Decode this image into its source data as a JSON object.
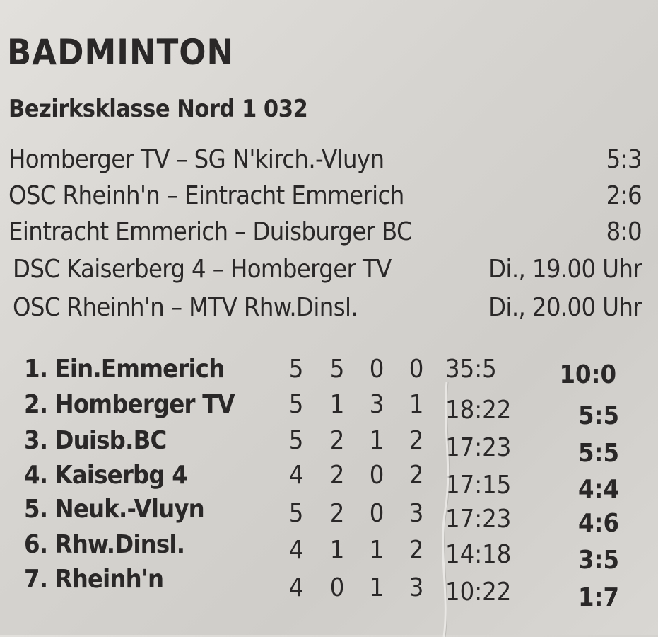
{
  "section": {
    "title": "BADMINTON"
  },
  "league": {
    "title": "Bezirksklasse Nord 1 032"
  },
  "matches": [
    {
      "teams": "Homberger TV – SG N'kirch.-Vluyn",
      "result": "5:3"
    },
    {
      "teams": "OSC Rheinh'n – Eintracht Emmerich",
      "result": "2:6"
    },
    {
      "teams": "Eintracht Emmerich – Duisburger BC",
      "result": "8:0"
    },
    {
      "teams": "DSC Kaiserberg 4 – Homberger TV",
      "result": "Di., 19.00 Uhr"
    },
    {
      "teams": "OSC Rheinh'n – MTV Rhw.Dinsl.",
      "result": "Di., 20.00 Uhr"
    }
  ],
  "standings": [
    {
      "rank": "1.",
      "team": "Ein.Emmerich",
      "played": "5",
      "won": "5",
      "draw": "0",
      "lost": "0",
      "games": "35:5",
      "points": "10:0"
    },
    {
      "rank": "2.",
      "team": "Homberger TV",
      "played": "5",
      "won": "1",
      "draw": "3",
      "lost": "1",
      "games": "18:22",
      "points": "5:5"
    },
    {
      "rank": "3.",
      "team": "Duisb.BC",
      "played": "5",
      "won": "2",
      "draw": "1",
      "lost": "2",
      "games": "17:23",
      "points": "5:5"
    },
    {
      "rank": "4.",
      "team": "Kaiserbg 4",
      "played": "4",
      "won": "2",
      "draw": "0",
      "lost": "2",
      "games": "17:15",
      "points": "4:4"
    },
    {
      "rank": "5.",
      "team": "Neuk.-Vluyn",
      "played": "5",
      "won": "2",
      "draw": "0",
      "lost": "3",
      "games": "17:23",
      "points": "4:6"
    },
    {
      "rank": "6.",
      "team": "Rhw.Dinsl.",
      "played": "4",
      "won": "1",
      "draw": "1",
      "lost": "2",
      "games": "14:18",
      "points": "3:5"
    },
    {
      "rank": "7.",
      "team": "Rheinh'n",
      "played": "4",
      "won": "0",
      "draw": "1",
      "lost": "3",
      "games": "10:22",
      "points": "1:7"
    }
  ]
}
